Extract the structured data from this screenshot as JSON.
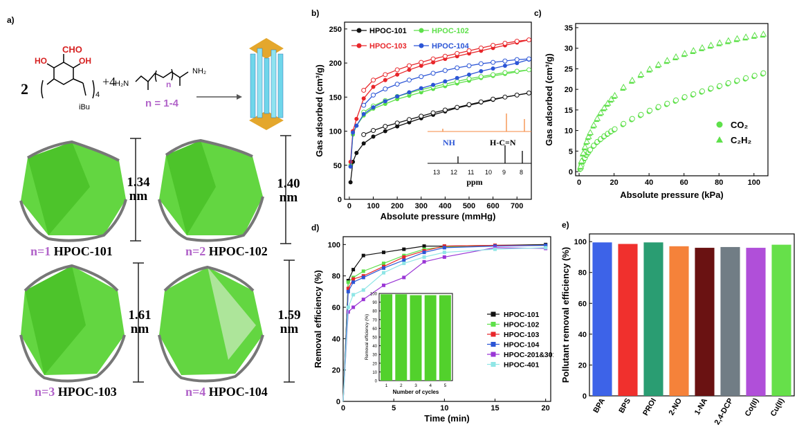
{
  "panels": {
    "a": "a)",
    "b": "b)",
    "c": "c)",
    "d": "d)",
    "e": "e)"
  },
  "scheme": {
    "coef1": "2",
    "cho": "CHO",
    "ho": "HO",
    "oh": "OH",
    "sub4": "4",
    "ibu": "iBu",
    "plus": "+4",
    "h2n": "H₂N",
    "nh2": "NH₂",
    "n": "n",
    "nrange": "n = 1-4"
  },
  "cages": [
    {
      "n": "n=1",
      "name": "HPOC-101",
      "size": "1.34",
      "unit": "nm"
    },
    {
      "n": "n=2",
      "name": "HPOC-102",
      "size": "1.40",
      "unit": "nm"
    },
    {
      "n": "n=3",
      "name": "HPOC-103",
      "size": "1.61",
      "unit": "nm"
    },
    {
      "n": "n=4",
      "name": "HPOC-104",
      "size": "1.59",
      "unit": "nm"
    }
  ],
  "colors": {
    "black": "#111111",
    "green": "#5ee04a",
    "red": "#e8262a",
    "blue": "#2b55d6",
    "purple": "#9a36d6",
    "cyan": "#8fe6e6",
    "orange": "#f58a40",
    "polyGreen": "#52d12c"
  },
  "chart_data": [
    {
      "id": "b",
      "type": "line",
      "xlabel": "Absolute pressure (mmHg)",
      "ylabel": "Gas adsorbed (cm³/g)",
      "xlim": [
        -20,
        760
      ],
      "ylim": [
        0,
        260
      ],
      "xticks": [
        0,
        100,
        200,
        300,
        400,
        500,
        600,
        700
      ],
      "yticks": [
        0,
        50,
        100,
        150,
        200,
        250
      ],
      "x": [
        5,
        15,
        30,
        60,
        100,
        150,
        200,
        250,
        300,
        350,
        400,
        450,
        500,
        550,
        600,
        650,
        700,
        750
      ],
      "series": [
        {
          "name": "HPOC-101",
          "color": "#111111",
          "adsorption": [
            25,
            55,
            68,
            82,
            92,
            100,
            107,
            113,
            119,
            124,
            129,
            134,
            138,
            142,
            146,
            150,
            153,
            156
          ],
          "desorption": [
            null,
            null,
            null,
            95,
            101,
            107,
            112,
            117,
            122,
            127,
            131,
            135,
            139,
            143,
            147,
            150,
            153,
            156
          ]
        },
        {
          "name": "HPOC-102",
          "color": "#5ee04a",
          "adsorption": [
            50,
            95,
            108,
            123,
            133,
            140,
            147,
            152,
            157,
            162,
            166,
            170,
            174,
            178,
            181,
            184,
            187,
            190
          ],
          "desorption": [
            null,
            null,
            null,
            128,
            137,
            145,
            151,
            156,
            161,
            165,
            169,
            173,
            177,
            180,
            183,
            186,
            188,
            190
          ]
        },
        {
          "name": "HPOC-103",
          "color": "#e8262a",
          "adsorption": [
            55,
            100,
            118,
            148,
            165,
            175,
            183,
            190,
            196,
            201,
            206,
            210,
            214,
            218,
            222,
            226,
            230,
            234
          ],
          "desorption": [
            null,
            null,
            null,
            160,
            175,
            183,
            190,
            196,
            201,
            206,
            210,
            214,
            218,
            222,
            226,
            229,
            232,
            234
          ]
        },
        {
          "name": "HPOC-104",
          "color": "#2b55d6",
          "adsorption": [
            48,
            98,
            108,
            125,
            135,
            144,
            151,
            157,
            163,
            168,
            173,
            178,
            183,
            188,
            192,
            196,
            200,
            205
          ],
          "desorption": [
            null,
            null,
            null,
            138,
            153,
            162,
            169,
            175,
            180,
            185,
            189,
            193,
            196,
            199,
            201,
            203,
            205,
            206
          ]
        }
      ],
      "inset": {
        "xlabel": "ppm",
        "ticks": [
          "13",
          "12",
          "11",
          "10",
          "9",
          "8"
        ],
        "nh": "NH",
        "hcn": "H-C=N"
      }
    },
    {
      "id": "c",
      "type": "scatter",
      "xlabel": "Absolute pressure (kPa)",
      "ylabel": "Gas adsorbed (cm³/g)",
      "xlim": [
        -2,
        108
      ],
      "ylim": [
        -1,
        36
      ],
      "xticks": [
        0,
        20,
        40,
        60,
        80,
        100
      ],
      "yticks": [
        0,
        5,
        10,
        15,
        20,
        25,
        30,
        35
      ],
      "series": [
        {
          "name": "CO₂",
          "marker": "circle",
          "x": [
            0.5,
            1,
            2,
            3,
            4,
            5,
            6,
            8,
            10,
            12,
            14,
            16,
            18,
            20,
            25,
            30,
            35,
            40,
            45,
            50,
            55,
            60,
            65,
            70,
            75,
            80,
            85,
            90,
            95,
            100,
            105
          ],
          "y": [
            0.5,
            1.3,
            2.3,
            3.1,
            3.9,
            4.5,
            5.1,
            6.1,
            7,
            7.7,
            8.4,
            9,
            9.6,
            10.1,
            11.4,
            12.6,
            13.6,
            14.6,
            15.5,
            16.3,
            17.1,
            17.9,
            18.6,
            19.3,
            20,
            20.6,
            21.3,
            21.9,
            22.5,
            23.1,
            23.7
          ]
        },
        {
          "name": "C₂H₂",
          "marker": "triangle",
          "x": [
            0.5,
            1,
            2,
            3,
            4,
            5,
            6,
            8,
            10,
            12,
            14,
            16,
            18,
            20,
            25,
            30,
            35,
            40,
            45,
            50,
            55,
            60,
            65,
            70,
            75,
            80,
            85,
            90,
            95,
            100,
            105
          ],
          "y": [
            1,
            2.3,
            4.2,
            5.7,
            7,
            8.2,
            9.2,
            11,
            12.6,
            14,
            15.2,
            16.3,
            17.3,
            18.2,
            20.2,
            21.9,
            23.3,
            24.6,
            25.7,
            26.7,
            27.6,
            28.4,
            29.1,
            29.8,
            30.4,
            31,
            31.5,
            32,
            32.4,
            32.8,
            33.1
          ]
        }
      ]
    },
    {
      "id": "d",
      "type": "line",
      "xlabel": "Time (min)",
      "ylabel": "Removal efficiency (%)",
      "xlim": [
        0,
        20.5
      ],
      "ylim": [
        0,
        105
      ],
      "xticks": [
        0,
        5,
        10,
        15,
        20
      ],
      "yticks": [
        0,
        20,
        40,
        60,
        80,
        100
      ],
      "series": [
        {
          "name": "HPOC-101",
          "color": "#111111",
          "x": [
            0,
            0.5,
            1,
            2,
            4,
            6,
            8,
            10,
            15,
            20
          ],
          "y": [
            0,
            77,
            84,
            93,
            95,
            97,
            99,
            99,
            99.5,
            100
          ]
        },
        {
          "name": "HPOC-102",
          "color": "#5ee04a",
          "x": [
            0,
            0.5,
            1,
            2,
            4,
            6,
            8,
            10,
            15,
            20
          ],
          "y": [
            0,
            76,
            79,
            83,
            88,
            93,
            97,
            98.5,
            99.5,
            99.5
          ]
        },
        {
          "name": "HPOC-103",
          "color": "#e8262a",
          "x": [
            0,
            0.5,
            1,
            2,
            4,
            6,
            8,
            10,
            15,
            20
          ],
          "y": [
            0,
            72,
            78,
            80,
            86,
            92,
            96,
            99,
            99.5,
            99.5
          ]
        },
        {
          "name": "HPOC-104",
          "color": "#2b55d6",
          "x": [
            0,
            0.5,
            1,
            2,
            4,
            6,
            8,
            10,
            15,
            20
          ],
          "y": [
            0,
            70,
            76,
            79,
            85,
            90,
            95,
            98,
            99,
            99.5
          ]
        },
        {
          "name": "HPOC-201&301",
          "color": "#9a36d6",
          "x": [
            0,
            0.5,
            1,
            2,
            4,
            6,
            8,
            10,
            15,
            20
          ],
          "y": [
            0,
            57,
            60,
            65,
            74,
            79,
            89,
            92,
            98,
            97.5
          ]
        },
        {
          "name": "HPOC-401",
          "color": "#8fe6e6",
          "x": [
            0,
            0.5,
            1,
            2,
            4,
            6,
            8,
            10,
            15,
            20
          ],
          "y": [
            0,
            60,
            68,
            71,
            82,
            88,
            92,
            95,
            97,
            98
          ]
        }
      ],
      "inset": {
        "type": "bar",
        "xlabel": "Number of cycles",
        "ylabel": "Removal efficiency (%)",
        "categories": [
          "1",
          "2",
          "3",
          "4",
          "5"
        ],
        "values": [
          99,
          99,
          98,
          98,
          98
        ],
        "ylim": [
          0,
          100
        ],
        "yticks": [
          0,
          10,
          20,
          30,
          40,
          50,
          60,
          70,
          80,
          90,
          100
        ]
      }
    },
    {
      "id": "e",
      "type": "bar",
      "ylabel": "Pollutant removal efficiency (%)",
      "ylim": [
        0,
        105
      ],
      "yticks": [
        0,
        20,
        40,
        60,
        80,
        100
      ],
      "categories": [
        "BPA",
        "BPS",
        "PROI",
        "2-NO",
        "1-NA",
        "2,4-DCP",
        "Co(II)",
        "Cu(II)"
      ],
      "values": [
        99.5,
        98.5,
        99.5,
        97,
        96,
        96.5,
        96,
        98
      ],
      "colors": [
        "#3d63e8",
        "#f0302d",
        "#2a9d72",
        "#f5823a",
        "#6a1212",
        "#717d85",
        "#b04fd9",
        "#66e04a"
      ]
    }
  ]
}
